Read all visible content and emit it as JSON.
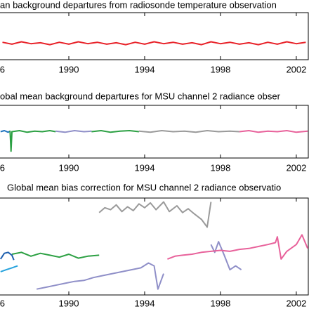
{
  "chart_data": [
    {
      "type": "line",
      "title": "an background departures from radiosonde temperature observation",
      "xlim": [
        1986.37,
        2002.67
      ],
      "xticks": [
        {
          "value": 1986,
          "label": "6"
        },
        1990,
        1994,
        1998,
        2002
      ],
      "ylim": [
        0,
        100
      ],
      "series": [
        {
          "color": "#e8232a",
          "x": [
            1986.5,
            1987,
            1987.5,
            1988,
            1988.5,
            1989,
            1989.5,
            1990,
            1990.5,
            1991,
            1991.5,
            1992,
            1992.5,
            1993,
            1993.5,
            1994,
            1994.5,
            1995,
            1995.5,
            1996,
            1996.5,
            1997,
            1997.5,
            1998,
            1998.5,
            1999,
            1999.5,
            2000,
            2000.5,
            2001,
            2001.5,
            2002,
            2002.5
          ],
          "values": [
            37,
            33,
            38,
            34,
            36,
            32,
            37,
            33,
            38,
            34,
            37,
            33,
            36,
            32,
            37,
            33,
            38,
            34,
            37,
            33,
            36,
            32,
            38,
            34,
            37,
            33,
            36,
            32,
            37,
            33,
            38,
            34,
            37
          ]
        }
      ]
    },
    {
      "type": "line",
      "title": "obal mean background departures for MSU channel 2 radiance obser",
      "xlim": [
        1986.37,
        2002.67
      ],
      "xticks": [
        {
          "value": 1986,
          "label": "6"
        },
        1990,
        1994,
        1998,
        2002
      ],
      "ylim": [
        0,
        100
      ],
      "series": [
        {
          "color": "#1e73be",
          "x": [
            1986.4,
            1986.6,
            1986.8,
            1986.9
          ],
          "values": [
            50,
            52,
            49,
            51
          ]
        },
        {
          "color": "#2ca043",
          "x": [
            1986.9,
            1986.95,
            1987.0,
            1987.4,
            1987.8,
            1988.2,
            1988.6,
            1989.0,
            1989.3
          ],
          "values": [
            52,
            13,
            50,
            52,
            49,
            51,
            50,
            52,
            50
          ]
        },
        {
          "color": "#8f8fc8",
          "x": [
            1989.3,
            1989.8,
            1990.3,
            1990.8,
            1991.2
          ],
          "values": [
            51,
            49,
            52,
            50,
            51
          ]
        },
        {
          "color": "#2ca043",
          "x": [
            1991.2,
            1991.7,
            1992.2,
            1992.7,
            1993.2,
            1993.7
          ],
          "values": [
            50,
            52,
            49,
            51,
            52,
            50
          ]
        },
        {
          "color": "#9a9a9a",
          "x": [
            1993.7,
            1994.3,
            1994.9,
            1995.5,
            1996.1,
            1996.7,
            1997.3,
            1997.9,
            1998.5,
            1999.0
          ],
          "values": [
            51,
            49,
            52,
            50,
            51,
            49,
            52,
            50,
            51,
            50
          ]
        },
        {
          "color": "#e8629b",
          "x": [
            1999.0,
            1999.5,
            2000.0,
            2000.5,
            2001.0,
            2001.5,
            2002.0,
            2002.6
          ],
          "values": [
            50,
            52,
            49,
            51,
            50,
            52,
            49,
            51
          ]
        }
      ]
    },
    {
      "type": "line",
      "title": "Global mean bias correction for MSU channel 2 radiance observatio",
      "xlim": [
        1986.37,
        2002.67
      ],
      "xticks": [
        {
          "value": 1986,
          "label": "6"
        },
        1990,
        1994,
        1998,
        2002
      ],
      "ylim": [
        0,
        100
      ],
      "series": [
        {
          "color": "#9a9a9a",
          "x": [
            1991.6,
            1991.9,
            1992.2,
            1992.5,
            1992.8,
            1993.1,
            1993.4,
            1993.7,
            1994.0,
            1994.3,
            1994.6,
            1995.0,
            1995.3,
            1995.7,
            1996.0,
            1996.3,
            1996.6,
            1997.0,
            1997.3,
            1997.5
          ],
          "values": [
            85,
            90,
            88,
            93,
            86,
            91,
            87,
            94,
            90,
            95,
            88,
            96,
            86,
            92,
            85,
            89,
            84,
            78,
            70,
            96
          ]
        },
        {
          "color": "#2ca043",
          "x": [
            1987.0,
            1987.5,
            1988.0,
            1988.5,
            1989.0,
            1989.5,
            1990.0,
            1990.5,
            1991.0,
            1991.6
          ],
          "values": [
            42,
            44,
            40,
            43,
            41,
            39,
            42,
            38,
            40,
            41
          ]
        },
        {
          "color": "#1e5fae",
          "x": [
            1986.4,
            1986.6,
            1986.8,
            1987.0,
            1987.1
          ],
          "values": [
            37,
            43,
            44,
            41,
            36
          ]
        },
        {
          "color": "#27a3dd",
          "x": [
            1986.4,
            1986.7,
            1987.0,
            1987.3
          ],
          "values": [
            24,
            26,
            28,
            30
          ]
        },
        {
          "color": "#8f8fc8",
          "x": [
            1988.3,
            1988.8,
            1989.3,
            1989.8,
            1990.3,
            1990.8,
            1991.3,
            1991.8,
            1992.3,
            1992.8,
            1993.3,
            1993.8,
            1994.2,
            1994.5,
            1994.7,
            1995.0
          ],
          "values": [
            6,
            8,
            10,
            12,
            14,
            15,
            18,
            20,
            22,
            24,
            26,
            28,
            33,
            30,
            6,
            22
          ]
        },
        {
          "color": "#8f8fc8",
          "x": [
            1997.5,
            1997.7,
            1997.9,
            1998.2,
            1998.5,
            1998.8,
            1999.1
          ],
          "values": [
            52,
            44,
            55,
            41,
            26,
            30,
            26
          ]
        },
        {
          "color": "#e8629b",
          "x": [
            1995.2,
            1995.6,
            1996.0,
            1996.5,
            1997.0,
            1997.5,
            1998.0,
            1998.5,
            1999.0,
            1999.5,
            2000.0,
            2000.5,
            2000.9,
            2001.0,
            2001.2,
            2001.5,
            2002.0,
            2002.3,
            2002.6
          ],
          "values": [
            37,
            40,
            41,
            42,
            44,
            45,
            46,
            45,
            47,
            48,
            50,
            52,
            54,
            60,
            37,
            45,
            52,
            62,
            48
          ]
        }
      ]
    }
  ]
}
